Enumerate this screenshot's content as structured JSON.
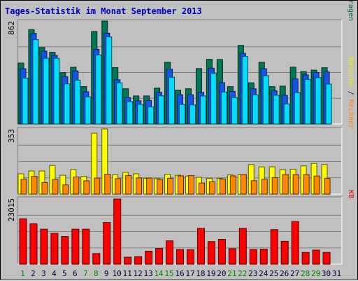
{
  "chart_data": {
    "type": "bar",
    "title": "Tages-Statistik im Monat September 2013",
    "categories": [
      "1",
      "2",
      "3",
      "4",
      "5",
      "6",
      "7",
      "8",
      "9",
      "10",
      "11",
      "12",
      "13",
      "14",
      "15",
      "16",
      "17",
      "18",
      "19",
      "20",
      "21",
      "22",
      "23",
      "24",
      "25",
      "26",
      "27",
      "28",
      "29",
      "30",
      "31"
    ],
    "weekend_days": [
      "1",
      "7",
      "8",
      "14",
      "15",
      "21",
      "22",
      "28",
      "29"
    ],
    "grid": true,
    "panels": [
      {
        "name": "top",
        "ymax_label": "862",
        "right_label_parts": [
          {
            "text": "Anfragen",
            "color": "#006633"
          },
          {
            "text": " / ",
            "color": "#000000"
          },
          {
            "text": "Dateien",
            "color": "#0033cc"
          },
          {
            "text": " / ",
            "color": "#000000"
          },
          {
            "text": "Seiten",
            "color": "#00bbee"
          }
        ],
        "ymax": 862,
        "series": [
          {
            "name": "Anfragen",
            "color": "#007755",
            "values": [
              510,
              790,
              640,
              600,
              430,
              475,
              313,
              774,
              862,
              472,
              295,
              235,
              235,
              300,
              517,
              284,
              295,
              464,
              541,
              540,
              313,
              658,
              345,
              517,
              313,
              317,
              476,
              439,
              451,
              471,
              0
            ]
          },
          {
            "name": "Dateien",
            "color": "#1155ee",
            "values": [
              463,
              758,
              610,
              574,
              396,
              444,
              270,
              625,
              760,
              370,
              220,
              195,
              197,
              265,
              460,
              245,
              245,
              265,
              467,
              346,
              273,
              592,
              295,
              463,
              278,
              240,
              378,
              411,
              431,
              436,
              0
            ]
          },
          {
            "name": "Seiten",
            "color": "#00ddff",
            "values": [
              384,
              706,
              550,
              550,
              336,
              367,
              227,
              578,
              729,
              345,
              188,
              164,
              143,
              236,
              391,
              164,
              160,
              235,
              423,
              268,
              222,
              565,
              244,
              405,
              241,
              168,
              263,
              373,
              388,
              334,
              0
            ]
          }
        ]
      },
      {
        "name": "middle",
        "ymax_label": "353",
        "right_label_parts": [
          {
            "text": "Rechner",
            "color": "#ff8800"
          },
          {
            "text": " / ",
            "color": "#000000"
          },
          {
            "text": "Besuche",
            "color": "#eeee00"
          }
        ],
        "ymax": 353,
        "series": [
          {
            "name": "Besuche",
            "color": "#ffff00",
            "values": [
              110,
              125,
              125,
              155,
              102,
              133,
              96,
              330,
              353,
              104,
              118,
              110,
              85,
              84,
              107,
              102,
              98,
              91,
              85,
              85,
              104,
              105,
              160,
              147,
              148,
              133,
              135,
              153,
              166,
              160,
              0
            ]
          },
          {
            "name": "Rechner",
            "color": "#ff8800",
            "values": [
              81,
              96,
              63,
              79,
              50,
              93,
              72,
              87,
              108,
              84,
              101,
              88,
              87,
              80,
              86,
              99,
              100,
              60,
              67,
              82,
              99,
              106,
              73,
              81,
              89,
              106,
              106,
              106,
              98,
              86,
              0
            ]
          }
        ]
      },
      {
        "name": "bottom",
        "ymax_label": "23015",
        "right_label_parts": [
          {
            "text": "KB",
            "color": "#dd0000"
          }
        ],
        "ymax": 23015,
        "series": [
          {
            "name": "KB",
            "color": "#ff0000",
            "values": [
              16050,
              14300,
              12350,
              10900,
              9760,
              12350,
              12350,
              3750,
              14700,
              23015,
              2470,
              2680,
              4600,
              5530,
              8250,
              5180,
              5120,
              12630,
              7980,
              8780,
              5480,
              12630,
              5180,
              5330,
              12200,
              8080,
              15050,
              4140,
              4980,
              4140,
              0
            ]
          }
        ]
      }
    ]
  }
}
